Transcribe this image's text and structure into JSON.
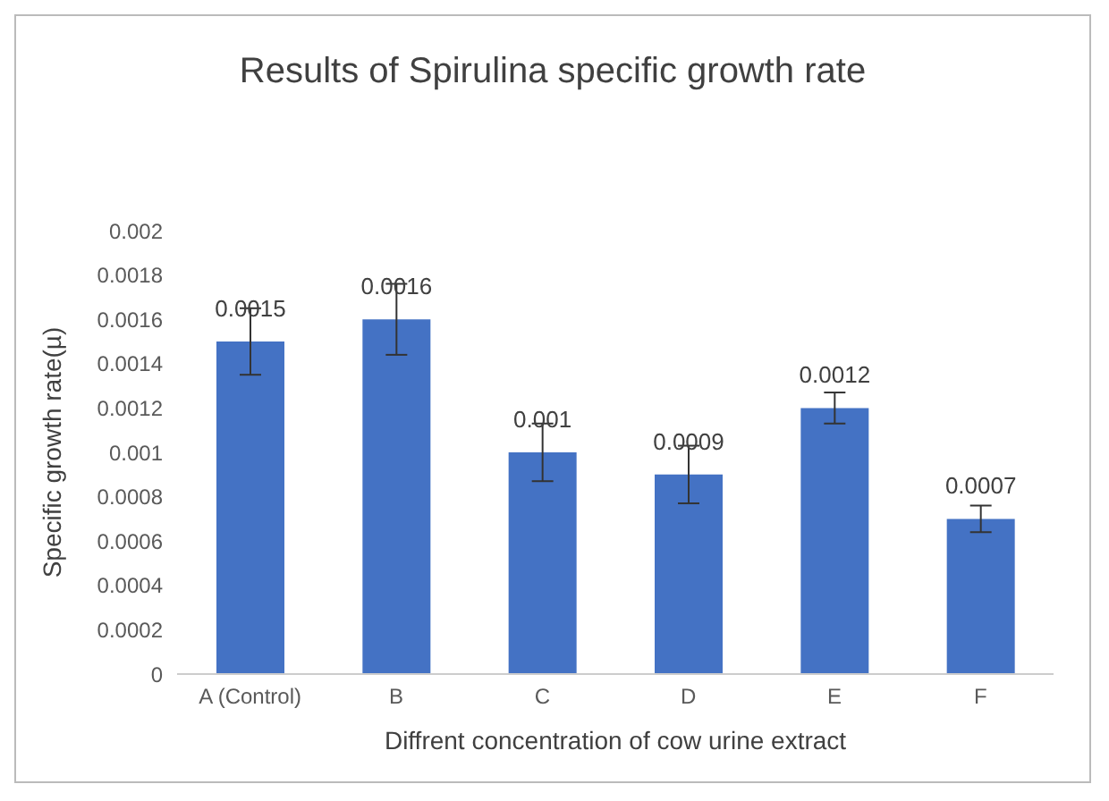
{
  "chart_data": {
    "type": "bar",
    "title": "Results of Spirulina specific growth rate",
    "xlabel": "Diffrent concentration of cow urine extract",
    "ylabel": "Specific growth rate(µ)",
    "categories": [
      "A (Control)",
      "B",
      "C",
      "D",
      "E",
      "F"
    ],
    "values": [
      0.0015,
      0.0016,
      0.001,
      0.0009,
      0.0012,
      0.0007
    ],
    "errors": [
      0.00015,
      0.00016,
      0.00013,
      0.00013,
      7e-05,
      6e-05
    ],
    "color": "#4472c4",
    "ylim": [
      0,
      0.002
    ],
    "yticks": [
      0,
      0.0002,
      0.0004,
      0.0006,
      0.0008,
      0.001,
      0.0012,
      0.0014,
      0.0016,
      0.0018,
      0.002
    ],
    "grid": false,
    "data_labels": true
  }
}
